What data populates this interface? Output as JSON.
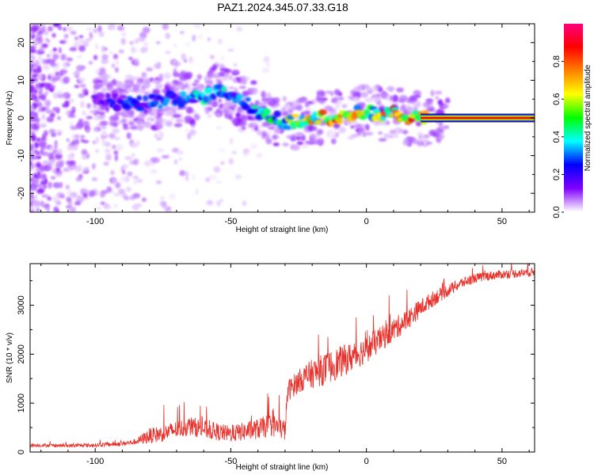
{
  "title": "PAZ1.2024.345.07.33.G18",
  "colors": {
    "snr_line": "#e8302a",
    "spectrum_low": "#c8a0f0",
    "spectrum_mid": "#5a10e0",
    "spectrum_peak": "#ff2020"
  },
  "chart_data": [
    {
      "type": "heatmap",
      "title": "",
      "xlabel": "Height of straight line (km)",
      "ylabel": "Frequency (Hz)",
      "xlim": [
        -124,
        62
      ],
      "ylim": [
        -25,
        25
      ],
      "x_ticks": [
        -100,
        -50,
        0,
        50
      ],
      "y_ticks": [
        -20,
        -10,
        0,
        10,
        20
      ],
      "colorbar": {
        "label": "Normalized spectral amplitude",
        "range": [
          0,
          1
        ],
        "ticks": [
          "0.0",
          "0.2",
          "0.4",
          "0.6",
          "0.8"
        ],
        "tick_values": [
          0.0,
          0.2,
          0.4,
          0.6,
          0.8
        ],
        "colormap": [
          "#ffffff",
          "#8000ff",
          "#0000ff",
          "#00ffff",
          "#00ff00",
          "#ffff00",
          "#ff8000",
          "#ff0000",
          "#ff0080"
        ]
      },
      "ridge": {
        "x": [
          -100,
          -90,
          -80,
          -72,
          -65,
          -58,
          -55,
          -50,
          -45,
          -40,
          -35,
          -30,
          -25,
          -20,
          -15,
          -10,
          -5,
          0,
          5,
          10,
          15,
          20,
          25,
          40,
          62
        ],
        "frequency": [
          5,
          4,
          4,
          5,
          5,
          6,
          8,
          6,
          4,
          2,
          0,
          -1,
          -1,
          0,
          0,
          0,
          1,
          2,
          1,
          1,
          0,
          0,
          0,
          0,
          0
        ],
        "amplitude": [
          0.15,
          0.25,
          0.3,
          0.3,
          0.35,
          0.4,
          0.4,
          0.35,
          0.35,
          0.4,
          0.45,
          0.5,
          0.6,
          0.7,
          0.75,
          0.8,
          0.7,
          0.6,
          0.7,
          0.8,
          0.75,
          0.8,
          0.85,
          0.9,
          0.9
        ]
      }
    },
    {
      "type": "line",
      "title": "",
      "xlabel": "Height of straight line (km)",
      "ylabel": "SNR (10 * v/v)",
      "xlim": [
        -124,
        62
      ],
      "ylim": [
        0,
        3850
      ],
      "x_ticks": [
        -100,
        -50,
        0,
        50
      ],
      "y_ticks": [
        0,
        1000,
        2000,
        3000
      ],
      "series": [
        {
          "x": [
            -124,
            -110,
            -100,
            -90,
            -85,
            -80,
            -75,
            -70,
            -65,
            -60,
            -55,
            -50,
            -45,
            -40,
            -35,
            -30,
            -29,
            -25,
            -20,
            -15,
            -10,
            -5,
            0,
            5,
            10,
            15,
            20,
            25,
            30,
            35,
            40,
            45,
            50,
            55,
            62
          ],
          "values": [
            140,
            130,
            140,
            170,
            210,
            330,
            380,
            460,
            530,
            470,
            410,
            370,
            420,
            470,
            560,
            450,
            1250,
            1450,
            1600,
            1700,
            1830,
            1950,
            2100,
            2300,
            2500,
            2700,
            2950,
            3150,
            3300,
            3450,
            3550,
            3600,
            3630,
            3650,
            3680
          ],
          "noise": [
            35,
            35,
            40,
            50,
            60,
            160,
            170,
            180,
            200,
            190,
            180,
            170,
            190,
            210,
            240,
            220,
            220,
            240,
            300,
            330,
            330,
            300,
            280,
            260,
            240,
            220,
            180,
            160,
            130,
            110,
            100,
            95,
            90,
            90,
            90
          ]
        }
      ]
    }
  ]
}
